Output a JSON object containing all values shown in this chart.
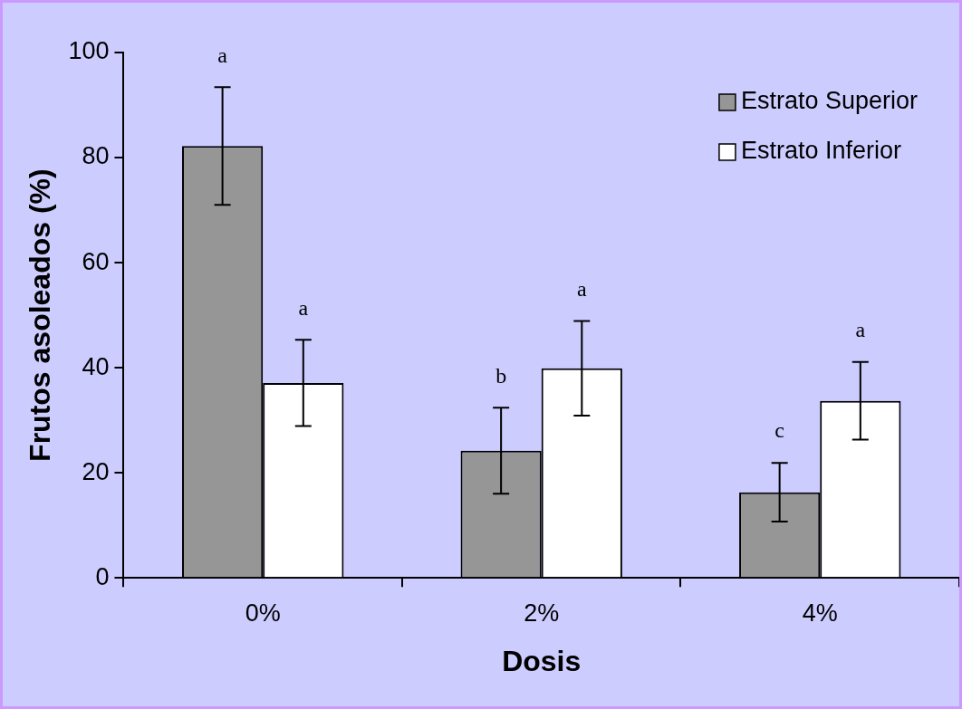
{
  "chart_data": {
    "type": "bar",
    "xlabel": "Dosis",
    "ylabel": "Frutos asoleados (%)",
    "categories": [
      "0%",
      "2%",
      "4%"
    ],
    "series": [
      {
        "name": "Estrato Superior",
        "color": "#969696",
        "values": [
          82.2,
          24.2,
          16.3
        ],
        "errors": [
          11.2,
          8.2,
          5.6
        ]
      },
      {
        "name": "Estrato Inferior",
        "color": "#ffffff",
        "values": [
          37.1,
          39.9,
          33.7
        ],
        "errors": [
          8.2,
          9,
          7.4
        ]
      }
    ],
    "ylim": [
      0,
      100
    ],
    "yticks": [
      0,
      20,
      40,
      60,
      80,
      100
    ],
    "grid": false,
    "legend": "top right",
    "annotations": [
      "a",
      "a",
      "b",
      "a",
      "c",
      "a"
    ]
  }
}
